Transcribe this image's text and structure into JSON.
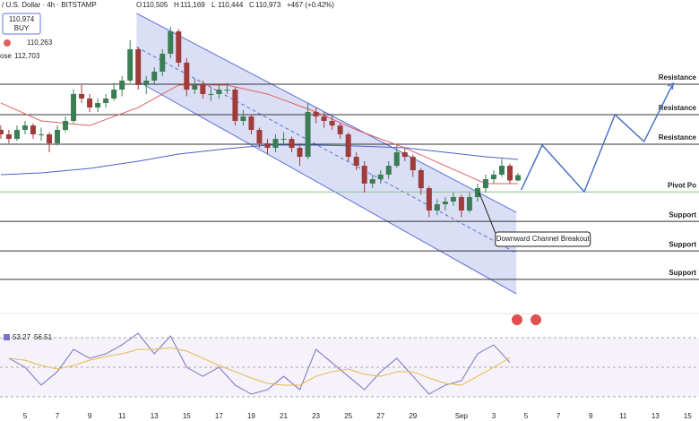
{
  "chart_data": {
    "type": "candlestick",
    "header": {
      "symbol": "/ U.S. Dollar · 4h · BITSTAMP",
      "fields": [
        "O",
        "H",
        "L",
        "C"
      ],
      "field_labels": [
        "110,505",
        "111,169",
        "110,444",
        "110,973"
      ],
      "change": "+467 (+0.42%)",
      "buy_price": "110,974",
      "buy": "BUY",
      "sell_price": "110,263",
      "ma_name": "ose",
      "ma_value": "112,703"
    },
    "xlim": [
      3.45,
      46.7
    ],
    "ylim": [
      98000,
      126400
    ],
    "xticks": [
      5,
      7,
      9,
      11,
      13,
      15,
      17,
      19,
      21,
      23,
      25,
      27,
      29,
      {
        "value": 32,
        "label": "Sep"
      },
      {
        "value": 34,
        "label": "3"
      },
      {
        "value": 36,
        "label": "5"
      },
      {
        "value": 38,
        "label": "7"
      },
      {
        "value": 40,
        "label": "9"
      },
      {
        "value": 42,
        "label": "11"
      },
      {
        "value": 44,
        "label": "13"
      },
      {
        "value": 46,
        "label": "15"
      }
    ],
    "up_color": "#3b7d55",
    "down_color": "#9e3b3b",
    "x": [
      3.5,
      4,
      4.5,
      5,
      5.5,
      6,
      6.5,
      7,
      7.5,
      8,
      8.5,
      9,
      9.5,
      10,
      10.5,
      11,
      11.5,
      12,
      12.5,
      13,
      13.5,
      14,
      14.5,
      15,
      15.5,
      16,
      16.5,
      17,
      17.5,
      18,
      18.5,
      19,
      19.5,
      20,
      20.5,
      21,
      21.5,
      22,
      22.5,
      23,
      23.5,
      24,
      24.5,
      25,
      25.5,
      26,
      26.5,
      27,
      27.5,
      28,
      28.5,
      29,
      29.5,
      30,
      30.5,
      31,
      31.5,
      32,
      32.5,
      33,
      33.5,
      34,
      34.5,
      35,
      35.5
    ],
    "ohlc": [
      [
        114960,
        115350,
        114170,
        114570
      ],
      [
        114570,
        114960,
        113780,
        114170
      ],
      [
        114170,
        115350,
        113990,
        114960
      ],
      [
        114960,
        115750,
        114570,
        115350
      ],
      [
        115350,
        115550,
        114170,
        114570
      ],
      [
        114570,
        115150,
        113990,
        114570
      ],
      [
        114570,
        114760,
        112990,
        113780
      ],
      [
        113780,
        115350,
        113580,
        114960
      ],
      [
        114960,
        116140,
        114760,
        115750
      ],
      [
        115750,
        118510,
        115550,
        118120
      ],
      [
        118120,
        118910,
        117330,
        117720
      ],
      [
        117720,
        118120,
        116540,
        116930
      ],
      [
        116930,
        117720,
        116540,
        117330
      ],
      [
        117330,
        118120,
        116930,
        117720
      ],
      [
        117720,
        119100,
        117530,
        118510
      ],
      [
        118510,
        119690,
        117920,
        119300
      ],
      [
        119300,
        122850,
        119100,
        122060
      ],
      [
        122060,
        122260,
        118510,
        118910
      ],
      [
        118910,
        119690,
        118120,
        119300
      ],
      [
        119300,
        120480,
        118910,
        120090
      ],
      [
        120090,
        122060,
        119690,
        121670
      ],
      [
        121670,
        124050,
        121270,
        123640
      ],
      [
        123640,
        123840,
        120480,
        120880
      ],
      [
        120880,
        121270,
        117920,
        118510
      ],
      [
        118510,
        119500,
        118120,
        118910
      ],
      [
        118910,
        119300,
        117720,
        118120
      ],
      [
        118120,
        118710,
        117530,
        118120
      ],
      [
        118120,
        118910,
        117720,
        118510
      ],
      [
        118510,
        119100,
        118120,
        118510
      ],
      [
        118510,
        118710,
        115350,
        115750
      ],
      [
        115750,
        116730,
        115350,
        116140
      ],
      [
        116140,
        116340,
        114570,
        114960
      ],
      [
        114960,
        115150,
        113380,
        113780
      ],
      [
        113780,
        114170,
        112790,
        113380
      ],
      [
        113380,
        114570,
        112990,
        114170
      ],
      [
        114170,
        114760,
        113580,
        114170
      ],
      [
        114170,
        114370,
        112990,
        113380
      ],
      [
        113380,
        113780,
        111800,
        112590
      ],
      [
        112590,
        117330,
        112390,
        116540
      ],
      [
        116540,
        116930,
        115550,
        116140
      ],
      [
        116140,
        116540,
        115150,
        115750
      ],
      [
        115750,
        116140,
        114960,
        115350
      ],
      [
        115350,
        115550,
        114170,
        114570
      ],
      [
        114570,
        114760,
        112200,
        112590
      ],
      [
        112590,
        112990,
        111410,
        111800
      ],
      [
        111800,
        112200,
        109440,
        110230
      ],
      [
        110230,
        111020,
        109830,
        110620
      ],
      [
        110620,
        111410,
        110230,
        111020
      ],
      [
        111020,
        112200,
        110620,
        111800
      ],
      [
        111800,
        113580,
        111600,
        112990
      ],
      [
        112990,
        113380,
        112200,
        112590
      ],
      [
        112590,
        112790,
        110820,
        111410
      ],
      [
        111410,
        111600,
        109240,
        109830
      ],
      [
        109830,
        110030,
        107270,
        107860
      ],
      [
        107860,
        108850,
        107460,
        108410
      ],
      [
        108410,
        109040,
        107860,
        108650
      ],
      [
        108650,
        109440,
        108260,
        109040
      ],
      [
        109040,
        109240,
        107270,
        107860
      ],
      [
        107860,
        109440,
        107660,
        109040
      ],
      [
        109040,
        110230,
        108650,
        109830
      ],
      [
        109830,
        111020,
        109440,
        110620
      ],
      [
        110620,
        111410,
        110230,
        111020
      ],
      [
        111020,
        112390,
        110820,
        111800
      ],
      [
        111800,
        112000,
        110230,
        110505
      ],
      [
        110505,
        111169,
        110444,
        110973
      ]
    ],
    "ma_x": [
      3.5,
      6,
      9,
      12,
      14.5,
      17.5,
      20,
      23,
      25.5,
      28.5,
      31,
      33.5,
      35.5
    ],
    "ma": [
      {
        "color": "#e06060",
        "values": [
          117330,
          115750,
          115350,
          116930,
          118910,
          118910,
          118120,
          116540,
          114960,
          113380,
          111800,
          110230,
          110230
        ]
      },
      {
        "color": "#4a63c8",
        "values": [
          111020,
          111170,
          111570,
          112200,
          112830,
          113300,
          113620,
          113620,
          113540,
          113380,
          112990,
          112590,
          112360
        ]
      }
    ],
    "channel": {
      "x": [
        11.9,
        35.4
      ],
      "upper": [
        125220,
        107700
      ],
      "lower": [
        119300,
        100520
      ],
      "color": "#5b6fd6"
    },
    "levels": [
      {
        "label": "Resistance",
        "value": 118980,
        "color": "#333333"
      },
      {
        "label": "Resistance",
        "value": 116300,
        "color": "#333333"
      },
      {
        "label": "Resistance",
        "value": 113700,
        "color": "#333333"
      },
      {
        "label": "Pivot Po",
        "value": 109500,
        "color": "#8cc08c"
      },
      {
        "label": "Support",
        "value": 106900,
        "color": "#333333"
      },
      {
        "label": "Support",
        "value": 104300,
        "color": "#333333"
      },
      {
        "label": "Support",
        "value": 101800,
        "color": "#333333"
      }
    ],
    "projection": {
      "x": [
        35.7,
        37.0,
        39.6,
        41.5,
        43.3,
        45.1
      ],
      "values": [
        109670,
        113620,
        109520,
        116300,
        113930,
        119060
      ],
      "color": "#4a72c4"
    },
    "annotation": {
      "text": "Downward Channel Breakout",
      "x": 33.1,
      "value": 109440
    },
    "rsi": {
      "ylim": [
        22.7,
        77.3
      ],
      "yticks": [
        30,
        50,
        70
      ],
      "x": [
        4,
        5,
        6,
        7,
        8,
        9,
        10,
        11,
        12,
        13,
        14,
        15,
        16,
        17,
        18,
        19,
        20,
        21,
        22,
        23,
        24,
        25,
        26,
        27,
        28,
        29,
        30,
        31,
        32,
        33,
        34,
        35
      ],
      "series": [
        {
          "name": "53.27",
          "color": "#7e6fc8",
          "values": [
            56.1,
            50,
            37.9,
            47,
            62.1,
            56.1,
            59.1,
            65.2,
            73,
            59.1,
            71.2,
            50,
            43.9,
            50,
            37.9,
            31.8,
            34.8,
            43.9,
            34.8,
            62.1,
            53,
            43.9,
            34.8,
            47,
            56.1,
            43.9,
            31.8,
            37.9,
            40.9,
            59.1,
            65.2,
            53.3
          ]
        },
        {
          "name": "56.51",
          "color": "#e8b84a",
          "values": [
            56.1,
            54.8,
            51.2,
            48.8,
            51.2,
            54.8,
            57.3,
            59.1,
            62.1,
            62.1,
            63.3,
            60.9,
            56.1,
            51.2,
            47,
            42.7,
            39.1,
            37.9,
            37.9,
            43.9,
            47,
            48.8,
            45.2,
            43.9,
            47,
            47,
            42.7,
            39.1,
            37.9,
            43.9,
            50,
            56.5
          ]
        }
      ]
    }
  }
}
